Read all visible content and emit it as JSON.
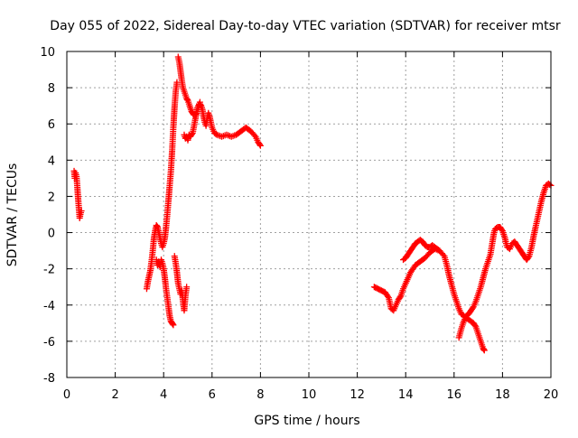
{
  "chart_data": {
    "type": "scatter",
    "title": "Day 055 of 2022, Sidereal Day-to-day VTEC variation (SDTVAR) for receiver mtsr",
    "xlabel": "GPS time / hours",
    "ylabel": "SDTVAR / TECUs",
    "xlim": [
      0,
      20
    ],
    "ylim": [
      -8,
      10
    ],
    "xticks": [
      0,
      2,
      4,
      6,
      8,
      10,
      12,
      14,
      16,
      18,
      20
    ],
    "yticks": [
      -8,
      -6,
      -4,
      -2,
      0,
      2,
      4,
      6,
      8,
      10
    ],
    "grid": true,
    "marker": "+",
    "colors": {
      "series": "#ff0000",
      "grid": "#a0a0a0",
      "axes": "#000000"
    },
    "series": [
      {
        "name": "SDTVAR",
        "segments": [
          [
            [
              0.3,
              3.4
            ],
            [
              0.33,
              3.0
            ],
            [
              0.36,
              3.3
            ],
            [
              0.4,
              3.1
            ],
            [
              0.43,
              2.6
            ],
            [
              0.46,
              2.0
            ],
            [
              0.5,
              1.3
            ],
            [
              0.53,
              0.8
            ],
            [
              0.56,
              1.0
            ],
            [
              0.6,
              1.2
            ]
          ],
          [
            [
              3.3,
              -3.1
            ],
            [
              3.35,
              -2.7
            ],
            [
              3.4,
              -2.4
            ],
            [
              3.45,
              -2.1
            ],
            [
              3.5,
              -1.6
            ],
            [
              3.55,
              -1.0
            ],
            [
              3.6,
              -0.3
            ],
            [
              3.65,
              0.1
            ],
            [
              3.7,
              0.4
            ],
            [
              3.75,
              0.3
            ],
            [
              3.8,
              0.0
            ],
            [
              3.85,
              -0.3
            ],
            [
              3.9,
              -0.6
            ],
            [
              3.95,
              -0.8
            ],
            [
              4.0,
              -0.6
            ],
            [
              4.05,
              -0.3
            ],
            [
              4.1,
              0.3
            ],
            [
              4.15,
              1.0
            ],
            [
              4.2,
              1.8
            ],
            [
              4.25,
              2.6
            ],
            [
              4.3,
              3.4
            ],
            [
              4.35,
              4.5
            ],
            [
              4.4,
              5.8
            ],
            [
              4.45,
              6.9
            ],
            [
              4.5,
              7.8
            ],
            [
              4.55,
              8.3
            ]
          ],
          [
            [
              3.7,
              -1.5
            ],
            [
              3.75,
              -1.8
            ],
            [
              3.8,
              -1.6
            ],
            [
              3.85,
              -1.9
            ],
            [
              3.9,
              -1.5
            ],
            [
              3.95,
              -1.7
            ],
            [
              4.0,
              -2.0
            ],
            [
              4.05,
              -2.5
            ],
            [
              4.1,
              -3.1
            ],
            [
              4.15,
              -3.6
            ],
            [
              4.2,
              -4.1
            ],
            [
              4.25,
              -4.6
            ],
            [
              4.3,
              -4.9
            ],
            [
              4.35,
              -5.0
            ],
            [
              4.4,
              -5.1
            ]
          ],
          [
            [
              4.45,
              -1.3
            ],
            [
              4.5,
              -1.7
            ],
            [
              4.55,
              -2.2
            ],
            [
              4.6,
              -2.8
            ],
            [
              4.65,
              -3.1
            ],
            [
              4.7,
              -3.4
            ],
            [
              4.75,
              -3.2
            ],
            [
              4.8,
              -3.8
            ],
            [
              4.85,
              -4.3
            ],
            [
              4.9,
              -3.5
            ],
            [
              4.95,
              -3.0
            ]
          ],
          [
            [
              4.6,
              9.7
            ],
            [
              4.65,
              9.4
            ],
            [
              4.7,
              8.9
            ],
            [
              4.75,
              8.4
            ],
            [
              4.8,
              8.0
            ],
            [
              4.85,
              7.8
            ],
            [
              4.9,
              7.6
            ],
            [
              4.95,
              7.4
            ],
            [
              5.0,
              7.3
            ],
            [
              5.05,
              7.1
            ],
            [
              5.1,
              6.9
            ],
            [
              5.15,
              6.7
            ],
            [
              5.2,
              6.6
            ],
            [
              5.25,
              6.5
            ],
            [
              5.3,
              6.5
            ],
            [
              5.35,
              6.6
            ],
            [
              5.4,
              6.8
            ],
            [
              5.45,
              7.0
            ],
            [
              5.5,
              7.1
            ],
            [
              5.55,
              7.0
            ],
            [
              5.6,
              6.8
            ],
            [
              5.65,
              6.4
            ],
            [
              5.7,
              6.1
            ],
            [
              5.75,
              5.9
            ],
            [
              5.8,
              6.3
            ],
            [
              5.85,
              6.6
            ],
            [
              5.9,
              6.4
            ],
            [
              5.95,
              6.1
            ],
            [
              6.0,
              5.8
            ],
            [
              6.1,
              5.5
            ],
            [
              6.2,
              5.4
            ],
            [
              6.4,
              5.3
            ],
            [
              6.6,
              5.4
            ],
            [
              6.8,
              5.3
            ],
            [
              7.0,
              5.4
            ],
            [
              7.2,
              5.6
            ],
            [
              7.4,
              5.8
            ],
            [
              7.6,
              5.6
            ],
            [
              7.8,
              5.3
            ],
            [
              7.9,
              5.0
            ],
            [
              8.0,
              4.8
            ]
          ],
          [
            [
              4.85,
              5.4
            ],
            [
              4.9,
              5.2
            ],
            [
              4.95,
              5.3
            ],
            [
              5.0,
              5.1
            ],
            [
              5.05,
              5.4
            ],
            [
              5.1,
              5.3
            ],
            [
              5.2,
              5.5
            ],
            [
              5.3,
              6.2
            ],
            [
              5.4,
              6.9
            ],
            [
              5.5,
              7.2
            ]
          ],
          [
            [
              12.7,
              -3.0
            ],
            [
              12.85,
              -3.1
            ],
            [
              13.0,
              -3.2
            ],
            [
              13.15,
              -3.3
            ],
            [
              13.3,
              -3.6
            ],
            [
              13.4,
              -4.2
            ],
            [
              13.5,
              -4.3
            ],
            [
              13.6,
              -4.0
            ],
            [
              13.7,
              -3.7
            ],
            [
              13.8,
              -3.5
            ],
            [
              13.9,
              -3.1
            ],
            [
              14.0,
              -2.8
            ],
            [
              14.1,
              -2.5
            ],
            [
              14.2,
              -2.2
            ],
            [
              14.4,
              -1.8
            ],
            [
              14.6,
              -1.6
            ],
            [
              14.8,
              -1.4
            ],
            [
              15.0,
              -1.1
            ],
            [
              15.2,
              -0.9
            ],
            [
              15.4,
              -1.0
            ],
            [
              15.6,
              -1.3
            ],
            [
              15.7,
              -1.8
            ],
            [
              15.8,
              -2.4
            ],
            [
              15.9,
              -2.9
            ],
            [
              16.0,
              -3.4
            ],
            [
              16.1,
              -3.8
            ],
            [
              16.2,
              -4.2
            ],
            [
              16.3,
              -4.5
            ],
            [
              16.4,
              -4.6
            ],
            [
              16.5,
              -4.7
            ],
            [
              16.6,
              -4.8
            ],
            [
              16.7,
              -4.9
            ],
            [
              16.8,
              -5.0
            ],
            [
              16.9,
              -5.2
            ],
            [
              17.0,
              -5.6
            ],
            [
              17.1,
              -6.0
            ],
            [
              17.2,
              -6.4
            ],
            [
              17.25,
              -6.5
            ]
          ],
          [
            [
              13.9,
              -1.5
            ],
            [
              14.0,
              -1.4
            ],
            [
              14.1,
              -1.2
            ],
            [
              14.2,
              -1.0
            ],
            [
              14.3,
              -0.8
            ],
            [
              14.4,
              -0.6
            ],
            [
              14.5,
              -0.5
            ],
            [
              14.6,
              -0.4
            ],
            [
              14.7,
              -0.5
            ],
            [
              14.8,
              -0.7
            ],
            [
              14.9,
              -0.8
            ],
            [
              15.0,
              -0.8
            ],
            [
              15.1,
              -0.7
            ],
            [
              15.2,
              -0.8
            ],
            [
              15.3,
              -0.9
            ],
            [
              15.4,
              -1.0
            ]
          ],
          [
            [
              16.2,
              -5.8
            ],
            [
              16.3,
              -5.3
            ],
            [
              16.4,
              -4.9
            ],
            [
              16.5,
              -4.6
            ],
            [
              16.6,
              -4.5
            ],
            [
              16.7,
              -4.3
            ],
            [
              16.8,
              -4.1
            ],
            [
              16.9,
              -3.8
            ],
            [
              17.0,
              -3.4
            ],
            [
              17.1,
              -3.0
            ],
            [
              17.2,
              -2.5
            ],
            [
              17.3,
              -2.0
            ],
            [
              17.4,
              -1.6
            ],
            [
              17.5,
              -1.2
            ],
            [
              17.55,
              -0.8
            ],
            [
              17.6,
              -0.4
            ],
            [
              17.65,
              0.0
            ],
            [
              17.7,
              0.2
            ],
            [
              17.8,
              0.3
            ],
            [
              17.9,
              0.3
            ],
            [
              18.0,
              0.1
            ],
            [
              18.1,
              -0.3
            ],
            [
              18.15,
              -0.6
            ],
            [
              18.2,
              -0.8
            ],
            [
              18.3,
              -0.9
            ],
            [
              18.4,
              -0.6
            ],
            [
              18.5,
              -0.5
            ],
            [
              18.6,
              -0.7
            ],
            [
              18.7,
              -0.9
            ],
            [
              18.8,
              -1.1
            ],
            [
              18.9,
              -1.3
            ],
            [
              19.0,
              -1.5
            ],
            [
              19.1,
              -1.3
            ],
            [
              19.2,
              -0.8
            ],
            [
              19.3,
              -0.1
            ],
            [
              19.4,
              0.5
            ],
            [
              19.5,
              1.1
            ],
            [
              19.6,
              1.7
            ],
            [
              19.7,
              2.2
            ],
            [
              19.8,
              2.6
            ],
            [
              19.9,
              2.7
            ],
            [
              20.0,
              2.6
            ]
          ]
        ]
      }
    ]
  }
}
